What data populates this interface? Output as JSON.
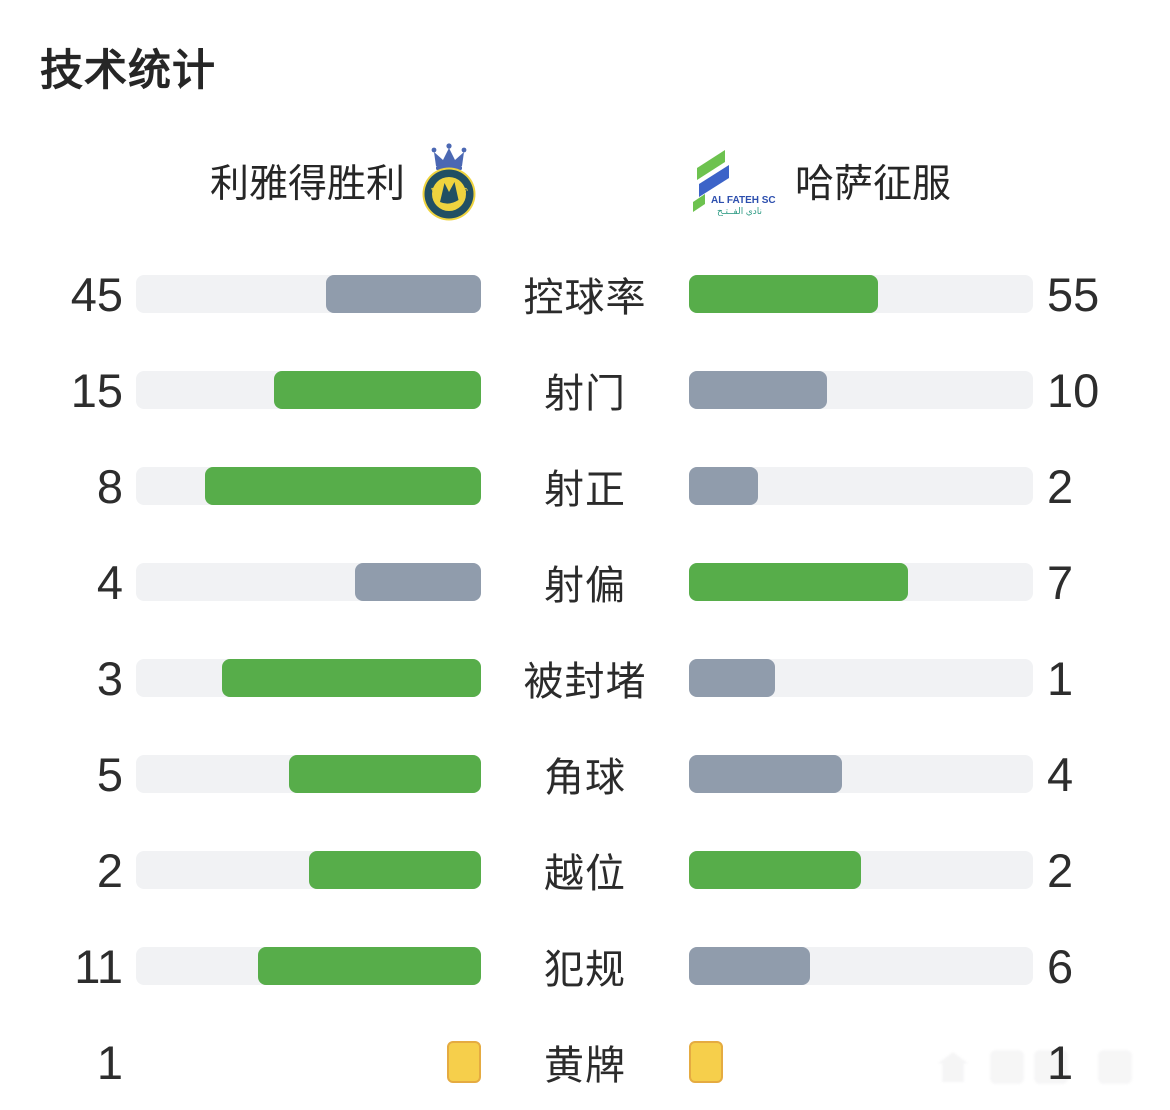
{
  "page": {
    "title": "技术统计",
    "background": "#ffffff"
  },
  "colors": {
    "green": "#57ad4a",
    "gray": "#909cac",
    "track": "#f1f2f4",
    "card_fill": "#f6cf4b",
    "card_border": "#e5ab41",
    "text": "#2b2b2b",
    "nassr_ring": "#214f63",
    "nassr_gold": "#eed33f",
    "nassr_crown_blue": "#4b68b3",
    "fateh_green": "#6dc24f",
    "fateh_blue": "#3c63c8",
    "fateh_text_blue": "#2d4fae",
    "fateh_text_teal": "#2e9b84"
  },
  "teams": {
    "home": {
      "name": "利雅得胜利",
      "crest_text": "AL NASSR"
    },
    "away": {
      "name": "哈萨征服",
      "crest_text": "AL FATEH SC",
      "crest_text_arabic": "نادي الفــتـح"
    }
  },
  "stats": {
    "rows": [
      {
        "label": "控球率",
        "home": 45,
        "away": 55,
        "home_pct": 45,
        "away_pct": 55,
        "home_color": "gray",
        "away_color": "green"
      },
      {
        "label": "射门",
        "home": 15,
        "away": 10,
        "home_pct": 60,
        "away_pct": 40,
        "home_color": "green",
        "away_color": "gray"
      },
      {
        "label": "射正",
        "home": 8,
        "away": 2,
        "home_pct": 80,
        "away_pct": 20,
        "home_color": "green",
        "away_color": "gray"
      },
      {
        "label": "射偏",
        "home": 4,
        "away": 7,
        "home_pct": 36.4,
        "away_pct": 63.6,
        "home_color": "gray",
        "away_color": "green"
      },
      {
        "label": "被封堵",
        "home": 3,
        "away": 1,
        "home_pct": 75,
        "away_pct": 25,
        "home_color": "green",
        "away_color": "gray"
      },
      {
        "label": "角球",
        "home": 5,
        "away": 4,
        "home_pct": 55.6,
        "away_pct": 44.4,
        "home_color": "green",
        "away_color": "gray"
      },
      {
        "label": "越位",
        "home": 2,
        "away": 2,
        "home_pct": 50,
        "away_pct": 50,
        "home_color": "green",
        "away_color": "green"
      },
      {
        "label": "犯规",
        "home": 11,
        "away": 6,
        "home_pct": 64.7,
        "away_pct": 35.3,
        "home_color": "green",
        "away_color": "gray"
      },
      {
        "label": "黄牌",
        "home": 1,
        "away": 1,
        "type": "cards"
      }
    ]
  },
  "chart_data": {
    "type": "bar",
    "title": "技术统计",
    "layout": "mirrored-horizontal-bars, labels centered, fill fraction = value / (home+away)",
    "legend_rule": "green bar = higher value of the pair, slate gray = lower, both green on tie, yellow-card row drawn as card icons",
    "categories": [
      "控球率",
      "射门",
      "射正",
      "射偏",
      "被封堵",
      "角球",
      "越位",
      "犯规",
      "黄牌"
    ],
    "series": [
      {
        "name": "利雅得胜利",
        "values": [
          45,
          15,
          8,
          4,
          3,
          5,
          2,
          11,
          1
        ]
      },
      {
        "name": "哈萨征服",
        "values": [
          55,
          10,
          2,
          7,
          1,
          4,
          2,
          6,
          1
        ]
      }
    ]
  }
}
